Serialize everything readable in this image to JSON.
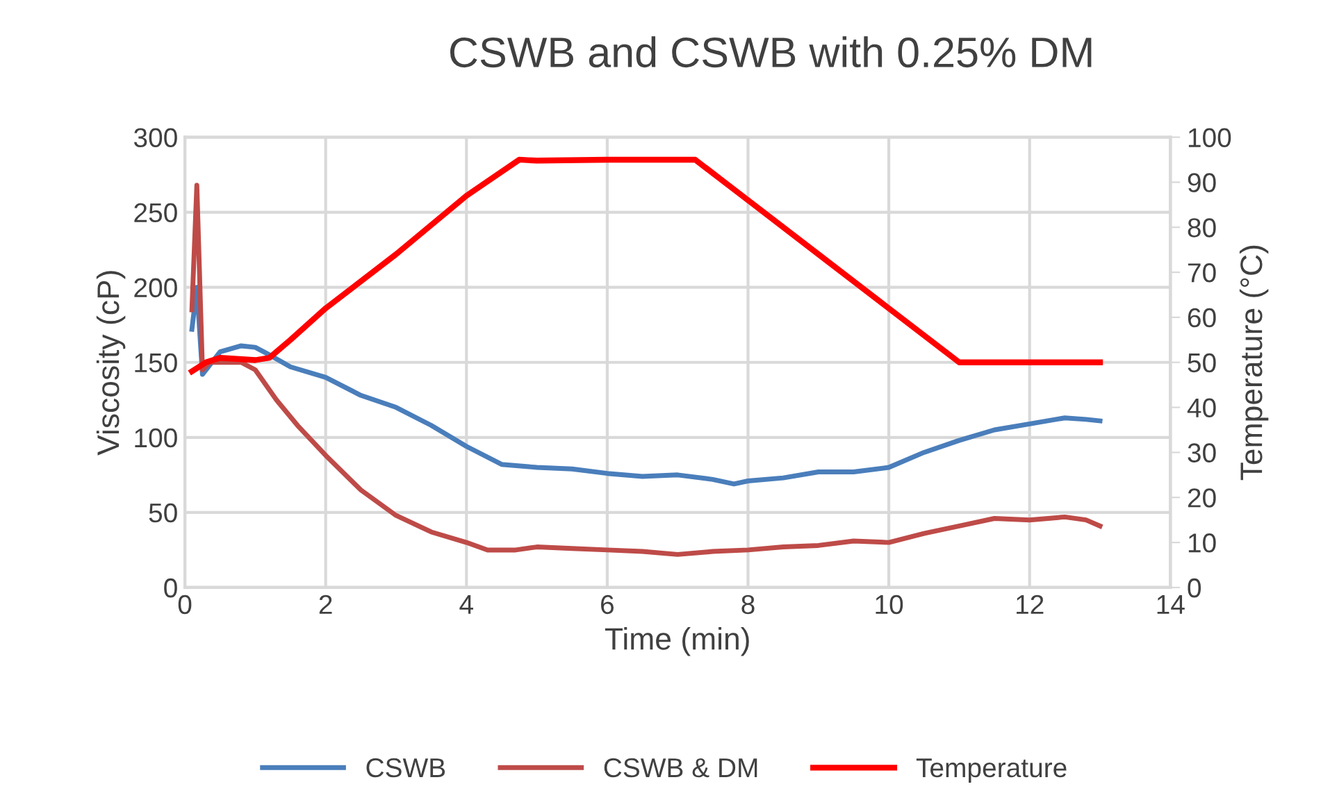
{
  "chart_data": {
    "type": "line",
    "title": "CSWB and CSWB with 0.25% DM",
    "xlabel": "Time (min)",
    "ylabel": "Viscosity (cP)",
    "y2label": "Temperature (°C)",
    "xlim": [
      0,
      14
    ],
    "xticks": [
      0,
      2,
      4,
      6,
      8,
      10,
      12,
      14
    ],
    "ylim": [
      0,
      300
    ],
    "yticks": [
      0,
      50,
      100,
      150,
      200,
      250,
      300
    ],
    "y2lim": [
      0,
      100
    ],
    "y2ticks": [
      0,
      10,
      20,
      30,
      40,
      50,
      60,
      70,
      80,
      90,
      100
    ],
    "grid": true,
    "legend": "bottom",
    "marker": "none",
    "line_style": "solid",
    "series": [
      {
        "name": "CSWB",
        "color": "#4a7ebb",
        "x": [
          0.1,
          0.17,
          0.25,
          0.35,
          0.5,
          0.8,
          1.0,
          1.2,
          1.5,
          2,
          2.5,
          3,
          3.5,
          4,
          4.5,
          5,
          5.5,
          6,
          6.5,
          7,
          7.5,
          7.8,
          8,
          8.5,
          9,
          9.5,
          10,
          10.5,
          11,
          11.5,
          12,
          12.5,
          12.8,
          13
        ],
        "values": [
          172,
          200,
          142,
          148,
          157,
          161,
          160,
          155,
          147,
          140,
          128,
          120,
          108,
          94,
          82,
          80,
          79,
          76,
          74,
          75,
          72,
          69,
          71,
          73,
          77,
          77,
          80,
          90,
          98,
          105,
          109,
          113,
          112,
          111
        ]
      },
      {
        "name": "CSWB & DM",
        "color": "#be4b48",
        "x": [
          0.1,
          0.17,
          0.25,
          0.35,
          0.5,
          0.8,
          1.0,
          1.3,
          1.6,
          2,
          2.5,
          3,
          3.5,
          4,
          4.3,
          4.7,
          5,
          5.5,
          6,
          6.5,
          7,
          7.5,
          8,
          8.5,
          9,
          9.5,
          10,
          10.5,
          11,
          11.5,
          12,
          12.5,
          12.8,
          13
        ],
        "values": [
          185,
          268,
          145,
          150,
          150,
          150,
          145,
          125,
          108,
          88,
          65,
          48,
          37,
          30,
          25,
          25,
          27,
          26,
          25,
          24,
          22,
          24,
          25,
          27,
          28,
          31,
          30,
          36,
          41,
          46,
          45,
          47,
          45,
          41
        ]
      },
      {
        "name": "Temperature",
        "color": "#ff0000",
        "axis": "y2",
        "x": [
          0.1,
          0.3,
          0.5,
          1.0,
          1.2,
          1.5,
          2,
          3,
          4,
          4.75,
          5,
          6,
          7.25,
          7.5,
          8,
          9,
          10,
          11,
          12,
          13
        ],
        "values": [
          48,
          50,
          51,
          50.5,
          51,
          55,
          62,
          74,
          87,
          95,
          94.8,
          95,
          95,
          92,
          86,
          74,
          62,
          50,
          50,
          50
        ]
      }
    ]
  }
}
